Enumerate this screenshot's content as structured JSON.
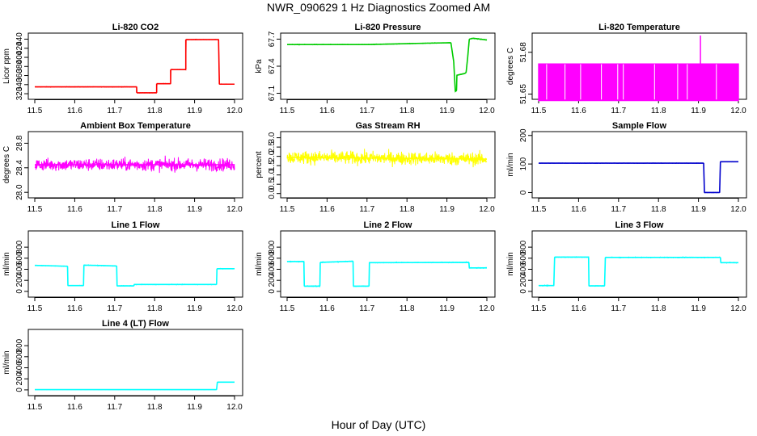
{
  "page": {
    "title": "NWR_090629  1 Hz Diagnostics Zoomed AM",
    "xlabel": "Hour of Day (UTC)"
  },
  "chart_data": [
    {
      "type": "line",
      "title": "Li-820 CO2",
      "ylabel": "Licor ppm",
      "color": "#ff0000",
      "xlim": [
        11.5,
        12.0
      ],
      "ylim": [
        313,
        448
      ],
      "x_ticks": [
        "11.5",
        "11.6",
        "11.7",
        "11.8",
        "11.9",
        "12.0"
      ],
      "y_ticks": [
        320,
        340,
        360,
        380,
        400,
        420,
        440
      ],
      "y_tick_labels": [
        "320",
        "340",
        "360",
        "380",
        "400",
        "420",
        "440"
      ],
      "noise": 0.6,
      "series": [
        {
          "x": [
            11.5,
            11.755,
            11.755,
            11.805,
            11.805,
            11.84,
            11.84,
            11.878,
            11.878,
            11.96,
            11.962,
            12.0
          ],
          "y": [
            335,
            335,
            322,
            322,
            342,
            342,
            373,
            373,
            439,
            439,
            341,
            341
          ]
        }
      ]
    },
    {
      "type": "line",
      "title": "Li-820 Pressure",
      "ylabel": "kPa",
      "color": "#00cc00",
      "xlim": [
        11.5,
        12.0
      ],
      "ylim": [
        67.06,
        67.74
      ],
      "x_ticks": [
        "11.5",
        "11.6",
        "11.7",
        "11.8",
        "11.9",
        "12.0"
      ],
      "y_ticks": [
        67.1,
        67.4,
        67.7
      ],
      "y_tick_labels": [
        "67.1",
        "67.4",
        "67.7"
      ],
      "noise": 0.004,
      "series": [
        {
          "x": [
            11.5,
            11.7,
            11.85,
            11.91,
            11.917,
            11.921,
            11.924,
            11.925,
            11.945,
            11.948,
            11.952,
            11.956,
            11.965,
            12.0
          ],
          "y": [
            67.64,
            67.64,
            67.655,
            67.66,
            67.45,
            67.12,
            67.13,
            67.3,
            67.32,
            67.33,
            67.5,
            67.7,
            67.71,
            67.69
          ]
        }
      ]
    },
    {
      "type": "bar",
      "title": "Li-820 Temperature",
      "ylabel": "degrees C",
      "color": "#ff00ff",
      "xlim": [
        11.5,
        12.0
      ],
      "ylim": [
        51.648,
        51.692
      ],
      "x_ticks": [
        "11.5",
        "11.6",
        "11.7",
        "11.8",
        "11.9",
        "12.0"
      ],
      "y_ticks": [
        51.65,
        51.68
      ],
      "y_tick_labels": [
        "51.65",
        "51.68"
      ],
      "base": 51.645,
      "level": 51.672,
      "spike": {
        "x": 11.905,
        "y": 51.692
      },
      "gaps": [
        11.52,
        11.566,
        11.605,
        11.657,
        11.698,
        11.712,
        11.79,
        11.848,
        11.872,
        11.945
      ]
    },
    {
      "type": "line",
      "title": "Ambient Box Temperature",
      "ylabel": "degrees C",
      "color": "#ff00ff",
      "xlim": [
        11.5,
        12.0
      ],
      "ylim": [
        27.95,
        28.95
      ],
      "x_ticks": [
        "11.5",
        "11.6",
        "11.7",
        "11.8",
        "11.9",
        "12.0"
      ],
      "y_ticks": [
        28.0,
        28.4,
        28.8
      ],
      "y_tick_labels": [
        "28.0",
        "28.4",
        "28.8"
      ],
      "noise": 0.1,
      "points": 700,
      "series": [
        {
          "x": [
            11.5,
            12.0
          ],
          "y": [
            28.45,
            28.45
          ]
        }
      ]
    },
    {
      "type": "line",
      "title": "Gas Stream RH",
      "ylabel": "percent",
      "color": "#ffff00",
      "xlim": [
        11.5,
        12.0
      ],
      "ylim": [
        -0.1,
        3.2
      ],
      "x_ticks": [
        "11.5",
        "11.6",
        "11.7",
        "11.8",
        "11.9",
        "12.0"
      ],
      "y_ticks": [
        0,
        0.5,
        1.0,
        1.5,
        2.0,
        2.5,
        3.0
      ],
      "y_tick_labels": [
        "0.0",
        "0.5",
        "1.0",
        "1.5",
        "2.0",
        "2.5",
        "3.0"
      ],
      "noise": 0.35,
      "points": 700,
      "series": [
        {
          "x": [
            11.5,
            12.0
          ],
          "y": [
            1.95,
            1.85
          ]
        }
      ]
    },
    {
      "type": "line",
      "title": "Sample Flow",
      "ylabel": "ml/min",
      "color": "#0000cc",
      "xlim": [
        11.5,
        12.0
      ],
      "ylim": [
        -10,
        205
      ],
      "x_ticks": [
        "11.5",
        "11.6",
        "11.7",
        "11.8",
        "11.9",
        "12.0"
      ],
      "y_ticks": [
        0,
        100,
        200
      ],
      "y_tick_labels": [
        "0",
        "100",
        "200"
      ],
      "noise": 0.8,
      "series": [
        {
          "x": [
            11.5,
            11.913,
            11.915,
            11.953,
            11.955,
            12.0
          ],
          "y": [
            103,
            103,
            0,
            0,
            108,
            108
          ]
        }
      ]
    },
    {
      "type": "line",
      "title": "Line 1 Flow",
      "ylabel": "ml/min",
      "color": "#00ffff",
      "xlim": [
        11.5,
        12.0
      ],
      "ylim": [
        -60,
        1050
      ],
      "x_ticks": [
        "11.5",
        "11.6",
        "11.7",
        "11.8",
        "11.9",
        "12.0"
      ],
      "y_ticks": [
        0,
        200,
        400,
        600,
        800
      ],
      "y_tick_labels": [
        "0",
        "200",
        "400",
        "600",
        "800"
      ],
      "noise": 6,
      "series": [
        {
          "x": [
            11.5,
            11.582,
            11.583,
            11.622,
            11.623,
            11.705,
            11.706,
            11.748,
            11.749,
            11.955,
            11.956,
            12.0
          ],
          "y": [
            470,
            455,
            105,
            105,
            475,
            460,
            100,
            100,
            125,
            125,
            410,
            410
          ]
        }
      ]
    },
    {
      "type": "line",
      "title": "Line 2 Flow",
      "ylabel": "ml/min",
      "color": "#00ffff",
      "xlim": [
        11.5,
        12.0
      ],
      "ylim": [
        -60,
        1050
      ],
      "x_ticks": [
        "11.5",
        "11.6",
        "11.7",
        "11.8",
        "11.9",
        "12.0"
      ],
      "y_ticks": [
        0,
        200,
        400,
        600,
        800
      ],
      "y_tick_labels": [
        "0",
        "200",
        "400",
        "600",
        "800"
      ],
      "noise": 8,
      "series": [
        {
          "x": [
            11.5,
            11.542,
            11.543,
            11.582,
            11.583,
            11.665,
            11.666,
            11.705,
            11.706,
            11.955,
            11.956,
            12.0
          ],
          "y": [
            540,
            540,
            95,
            95,
            525,
            545,
            95,
            95,
            520,
            525,
            425,
            425
          ]
        }
      ]
    },
    {
      "type": "line",
      "title": "Line 3 Flow",
      "ylabel": "ml/min",
      "color": "#00ffff",
      "xlim": [
        11.5,
        12.0
      ],
      "ylim": [
        -60,
        1050
      ],
      "x_ticks": [
        "11.5",
        "11.6",
        "11.7",
        "11.8",
        "11.9",
        "12.0"
      ],
      "y_ticks": [
        0,
        200,
        400,
        600,
        800
      ],
      "y_tick_labels": [
        "0",
        "200",
        "400",
        "600",
        "800"
      ],
      "noise": 8,
      "series": [
        {
          "x": [
            11.5,
            11.538,
            11.54,
            11.625,
            11.626,
            11.665,
            11.667,
            11.955,
            11.956,
            12.0
          ],
          "y": [
            105,
            105,
            620,
            620,
            100,
            100,
            615,
            615,
            520,
            520
          ]
        }
      ]
    },
    {
      "type": "line",
      "title": "Line 4 (LT) Flow",
      "ylabel": "ml/min",
      "color": "#00ffff",
      "xlim": [
        11.5,
        12.0
      ],
      "ylim": [
        -60,
        1050
      ],
      "x_ticks": [
        "11.5",
        "11.6",
        "11.7",
        "11.8",
        "11.9",
        "12.0"
      ],
      "y_ticks": [
        0,
        200,
        400,
        600,
        800
      ],
      "y_tick_labels": [
        "0",
        "200",
        "400",
        "600",
        "800"
      ],
      "noise": 1,
      "series": [
        {
          "x": [
            11.5,
            11.955,
            11.957,
            12.0
          ],
          "y": [
            5,
            5,
            140,
            140
          ]
        }
      ]
    }
  ]
}
